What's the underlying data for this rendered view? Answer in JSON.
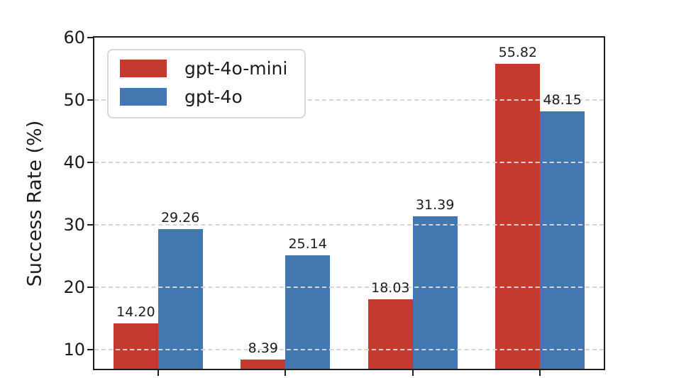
{
  "chart_data": {
    "type": "bar",
    "title": "",
    "xlabel": "",
    "ylabel": "Success Rate (%)",
    "categories": [
      "",
      "",
      "",
      ""
    ],
    "series": [
      {
        "name": "gpt-4o-mini",
        "color": "#c43a2f",
        "values": [
          14.2,
          8.39,
          18.03,
          55.82
        ]
      },
      {
        "name": "gpt-4o",
        "color": "#4277b0",
        "values": [
          29.26,
          25.14,
          31.39,
          48.15
        ]
      }
    ],
    "value_label_decimals": 2,
    "yticks": [
      10,
      20,
      30,
      40,
      50,
      60
    ],
    "ylim": [
      6.9,
      60
    ],
    "grid": "horizontal dashed",
    "legend": {
      "position": "upper-left"
    },
    "bar_width_fraction": 0.35,
    "group_offset_fraction": 0.175
  },
  "styles": {
    "grid_color": "#d5d5d5",
    "spine_color": "#1f1f1f",
    "text_color": "#1c1c1c",
    "legend_border_color": "#d9d9d9",
    "background": "#ffffff"
  }
}
